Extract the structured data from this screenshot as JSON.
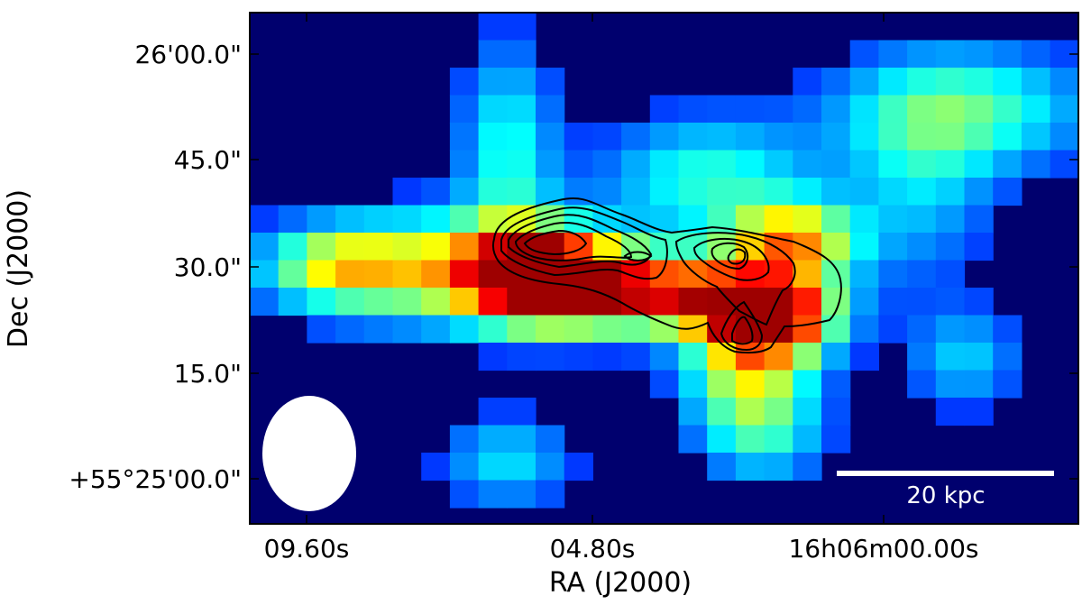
{
  "figure": {
    "xlabel": "RA (J2000)",
    "ylabel": "Dec (J2000)",
    "x_ticks": [
      "09.60s",
      "04.80s",
      "16h06m00.00s"
    ],
    "y_ticks": [
      "26'00.0\"",
      "45.0\"",
      "30.0\"",
      "15.0\"",
      "+55°25'00.0\""
    ],
    "scale_bar_label": "20 kpc",
    "colors": {
      "background": "#00006e",
      "contour": "#000000",
      "beam": "#ffffff",
      "scale_bar": "#ffffff",
      "colormap": "jet"
    }
  }
}
